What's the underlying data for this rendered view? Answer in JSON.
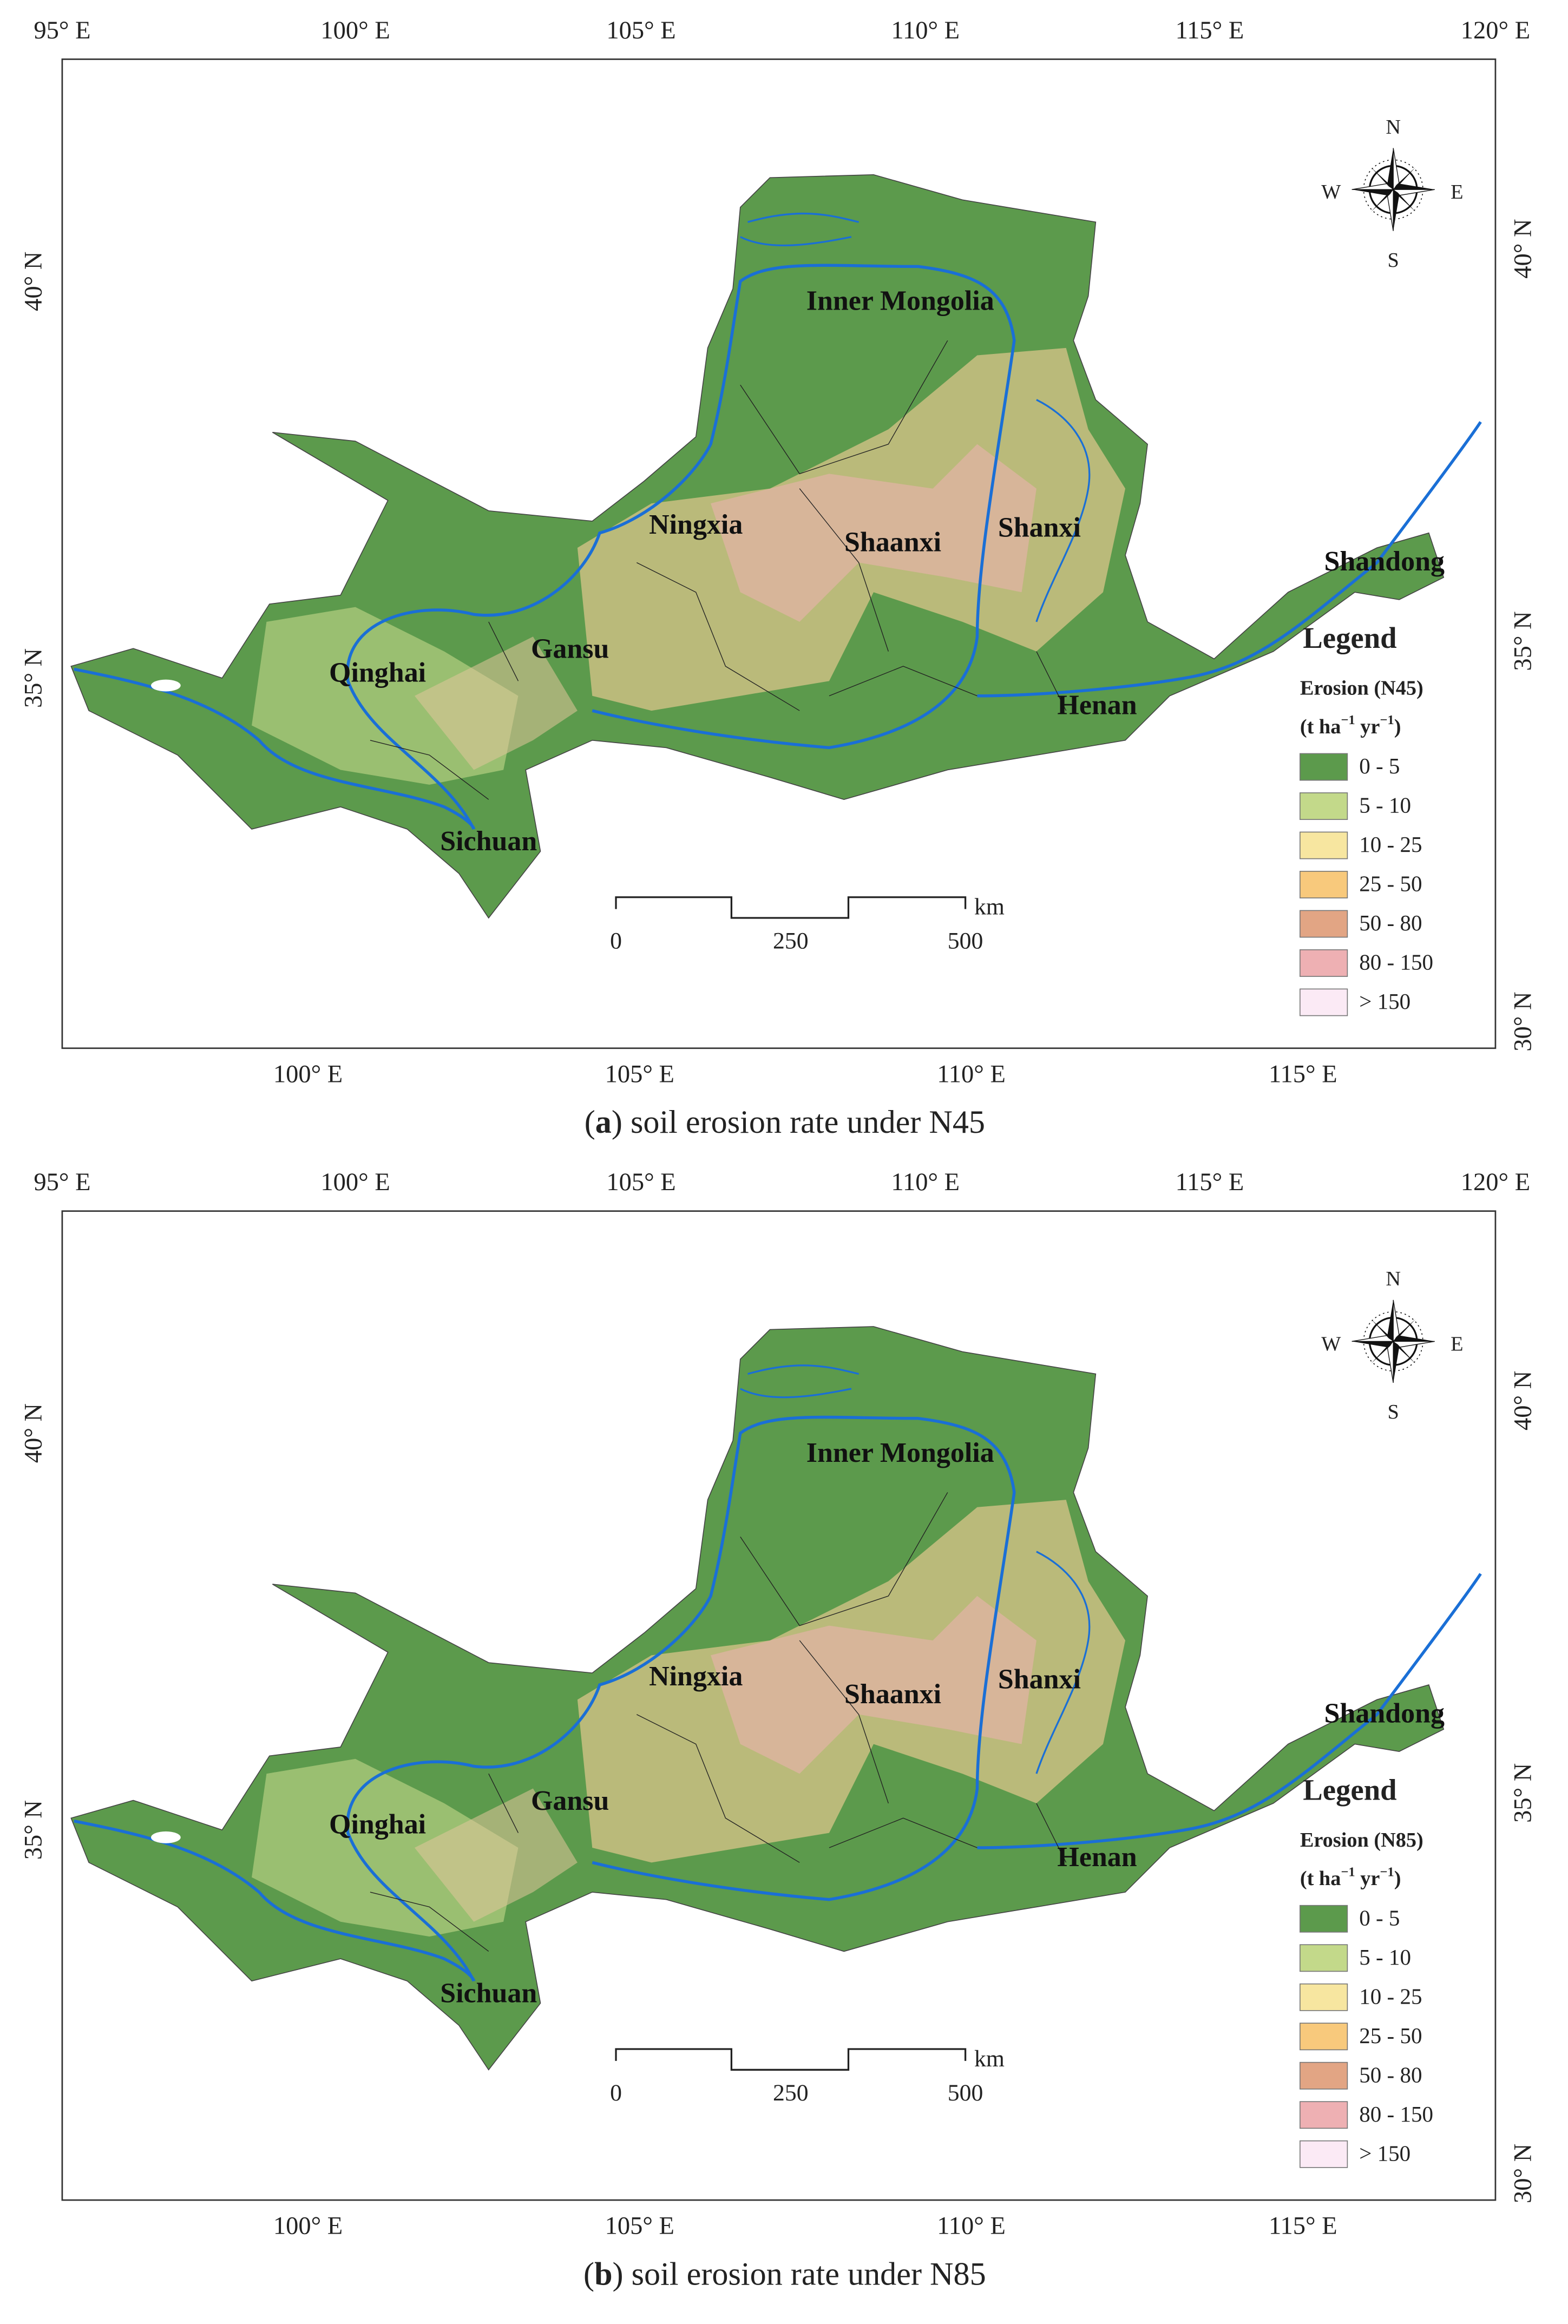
{
  "panels": [
    {
      "top_axis": [
        "95° E",
        "100° E",
        "105° E",
        "110° E",
        "115° E",
        "120° E"
      ],
      "bottom_axis": [
        "100° E",
        "105° E",
        "110° E",
        "115° E"
      ],
      "left_axis": [
        "40° N",
        "35° N"
      ],
      "right_axis": [
        "40° N",
        "35° N",
        "30° N"
      ],
      "regions": [
        "Inner Mongolia",
        "Ningxia",
        "Shaanxi",
        "Shanxi",
        "Shandong",
        "Gansu",
        "Qinghai",
        "Henan",
        "Sichuan"
      ],
      "compass": {
        "n": "N",
        "s": "S",
        "w": "W",
        "e": "E"
      },
      "scale_bar": {
        "unit": "km",
        "labels": [
          "0",
          "250",
          "500"
        ]
      },
      "legend": {
        "title": "Legend",
        "heading": "Erosion (N45)",
        "units": [
          "(t ha",
          "−1",
          " yr",
          "−1",
          ")"
        ],
        "items": [
          {
            "label": "0 - 5",
            "color": "#5c9a4c"
          },
          {
            "label": "5 - 10",
            "color": "#c3d98a"
          },
          {
            "label": "10 - 25",
            "color": "#f7e6a0"
          },
          {
            "label": "25 - 50",
            "color": "#f8c97c"
          },
          {
            "label": "50 - 80",
            "color": "#e2a584"
          },
          {
            "label": "80 - 150",
            "color": "#eeb0b3"
          },
          {
            "label": "> 150",
            "color": "#fbeaf5"
          }
        ]
      },
      "caption": {
        "open": "(",
        "letter": "a",
        "text": ") soil erosion rate under N45"
      }
    },
    {
      "top_axis": [
        "95° E",
        "100° E",
        "105° E",
        "110° E",
        "115° E",
        "120° E"
      ],
      "bottom_axis": [
        "100° E",
        "105° E",
        "110° E",
        "115° E"
      ],
      "left_axis": [
        "40° N",
        "35° N"
      ],
      "right_axis": [
        "40° N",
        "35° N",
        "30° N"
      ],
      "regions": [
        "Inner Mongolia",
        "Ningxia",
        "Shaanxi",
        "Shanxi",
        "Shandong",
        "Gansu",
        "Qinghai",
        "Henan",
        "Sichuan"
      ],
      "compass": {
        "n": "N",
        "s": "S",
        "w": "W",
        "e": "E"
      },
      "scale_bar": {
        "unit": "km",
        "labels": [
          "0",
          "250",
          "500"
        ]
      },
      "legend": {
        "title": "Legend",
        "heading": "Erosion (N85)",
        "units": [
          "(t ha",
          "−1",
          " yr",
          "−1",
          ")"
        ],
        "items": [
          {
            "label": "0 - 5",
            "color": "#5c9a4c"
          },
          {
            "label": "5 - 10",
            "color": "#c3d98a"
          },
          {
            "label": "10 - 25",
            "color": "#f7e6a0"
          },
          {
            "label": "25 - 50",
            "color": "#f8c97c"
          },
          {
            "label": "50 - 80",
            "color": "#e2a584"
          },
          {
            "label": "80 - 150",
            "color": "#eeb0b3"
          },
          {
            "label": "> 150",
            "color": "#fbeaf5"
          }
        ]
      },
      "caption": {
        "open": "(",
        "letter": "b",
        "text": ") soil erosion rate under N85"
      }
    }
  ]
}
